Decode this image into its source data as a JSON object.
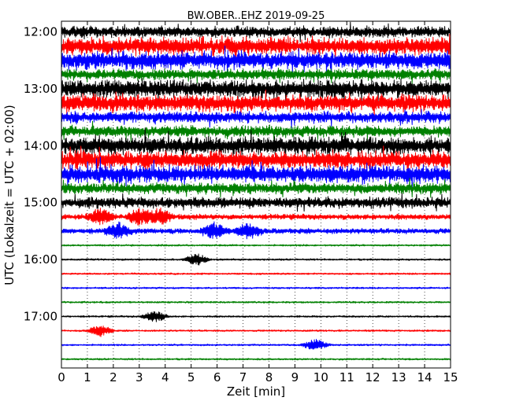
{
  "chart_data": {
    "type": "line",
    "title": "BW.OBER..EHZ 2019-09-25",
    "xlabel": "Zeit  [min]",
    "ylabel": "UTC (Lokalzeit = UTC + 02:00)",
    "xlim": [
      0,
      15
    ],
    "x_ticks": [
      0,
      1,
      2,
      3,
      4,
      5,
      6,
      7,
      8,
      9,
      10,
      11,
      12,
      13,
      14,
      15
    ],
    "x_tick_labels": [
      "0",
      "1",
      "2",
      "3",
      "4",
      "5",
      "6",
      "7",
      "8",
      "9",
      "10",
      "11",
      "12",
      "13",
      "14",
      "15"
    ],
    "y_axis_inverted": true,
    "y_tick_labels": [
      "12:00",
      "13:00",
      "14:00",
      "15:00",
      "16:00",
      "17:00"
    ],
    "y_tick_times_utc": [
      "12:00",
      "13:00",
      "14:00",
      "15:00",
      "16:00",
      "17:00"
    ],
    "trace_interval_minutes": 15,
    "grid": {
      "x": true,
      "style": "dotted",
      "y": false
    },
    "colors": [
      "#000000",
      "#ff0000",
      "#0000ff",
      "#008000"
    ],
    "series": [
      {
        "start": "12:00",
        "color": "#000000",
        "noise_level": "high"
      },
      {
        "start": "12:15",
        "color": "#ff0000",
        "noise_level": "very high"
      },
      {
        "start": "12:30",
        "color": "#0000ff",
        "noise_level": "very high"
      },
      {
        "start": "12:45",
        "color": "#008000",
        "noise_level": "high"
      },
      {
        "start": "13:00",
        "color": "#000000",
        "noise_level": "very high"
      },
      {
        "start": "13:15",
        "color": "#ff0000",
        "noise_level": "very high"
      },
      {
        "start": "13:30",
        "color": "#0000ff",
        "noise_level": "high"
      },
      {
        "start": "13:45",
        "color": "#008000",
        "noise_level": "high"
      },
      {
        "start": "14:00",
        "color": "#000000",
        "noise_level": "very high"
      },
      {
        "start": "14:15",
        "color": "#ff0000",
        "noise_level": "very high"
      },
      {
        "start": "14:30",
        "color": "#0000ff",
        "noise_level": "very high"
      },
      {
        "start": "14:45",
        "color": "#008000",
        "noise_level": "high"
      },
      {
        "start": "15:00",
        "color": "#000000",
        "noise_level": "high"
      },
      {
        "start": "15:15",
        "color": "#ff0000",
        "noise_level": "medium",
        "events_min": [
          1.5,
          3.0,
          3.8
        ]
      },
      {
        "start": "15:30",
        "color": "#0000ff",
        "noise_level": "medium",
        "events_min": [
          2.2,
          5.9,
          7.2
        ]
      },
      {
        "start": "15:45",
        "color": "#008000",
        "noise_level": "low"
      },
      {
        "start": "16:00",
        "color": "#000000",
        "noise_level": "low",
        "events_min": [
          5.2
        ]
      },
      {
        "start": "16:15",
        "color": "#ff0000",
        "noise_level": "low"
      },
      {
        "start": "16:30",
        "color": "#0000ff",
        "noise_level": "low"
      },
      {
        "start": "16:45",
        "color": "#008000",
        "noise_level": "low"
      },
      {
        "start": "17:00",
        "color": "#000000",
        "noise_level": "low",
        "events_min": [
          3.6
        ]
      },
      {
        "start": "17:15",
        "color": "#ff0000",
        "noise_level": "low",
        "events_min": [
          1.5
        ]
      },
      {
        "start": "17:30",
        "color": "#0000ff",
        "noise_level": "low",
        "events_min": [
          9.8
        ]
      },
      {
        "start": "17:45",
        "color": "#008000",
        "noise_level": "low"
      }
    ]
  }
}
